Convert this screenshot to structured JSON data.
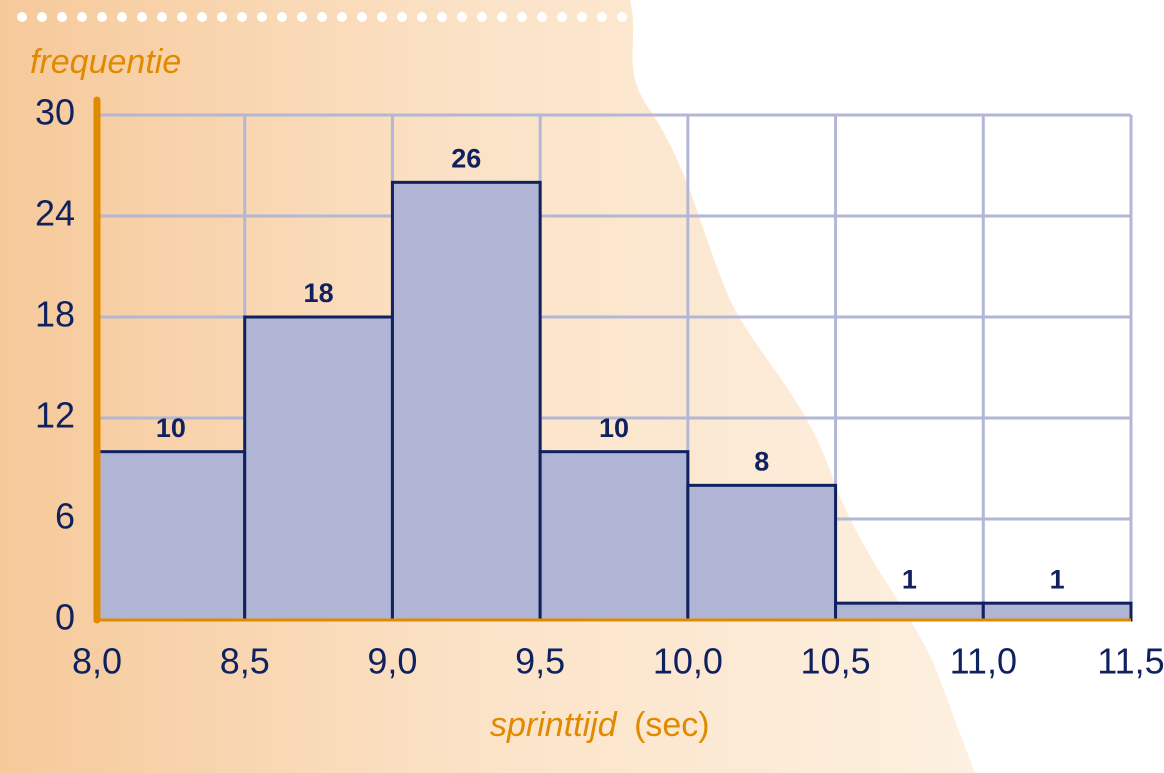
{
  "chart_data": {
    "type": "histogram",
    "ylabel": "frequentie",
    "xlabel": "sprinttijd",
    "xunit": "(sec)",
    "bins": [
      8.0,
      8.5,
      9.0,
      9.5,
      10.0,
      10.5,
      11.0,
      11.5
    ],
    "values": [
      10,
      18,
      26,
      10,
      8,
      1,
      1
    ],
    "color": "#b1b5d5",
    "edgecolor": "#10215f",
    "axiscolor": "#e08a00",
    "gridcolor": "#b3b7d6",
    "grid": true,
    "xlim": [
      8.0,
      11.5
    ],
    "ylim": [
      0,
      30
    ],
    "xticks": [
      {
        "value": 8.0,
        "label": "8,0"
      },
      {
        "value": 8.5,
        "label": "8,5"
      },
      {
        "value": 9.0,
        "label": "9,0"
      },
      {
        "value": 9.5,
        "label": "9,5"
      },
      {
        "value": 10.0,
        "label": "10,0"
      },
      {
        "value": 10.5,
        "label": "10,5"
      },
      {
        "value": 11.0,
        "label": "11,0"
      },
      {
        "value": 11.5,
        "label": "11,5"
      }
    ],
    "yticks": [
      0,
      6,
      12,
      18,
      24,
      30
    ]
  }
}
